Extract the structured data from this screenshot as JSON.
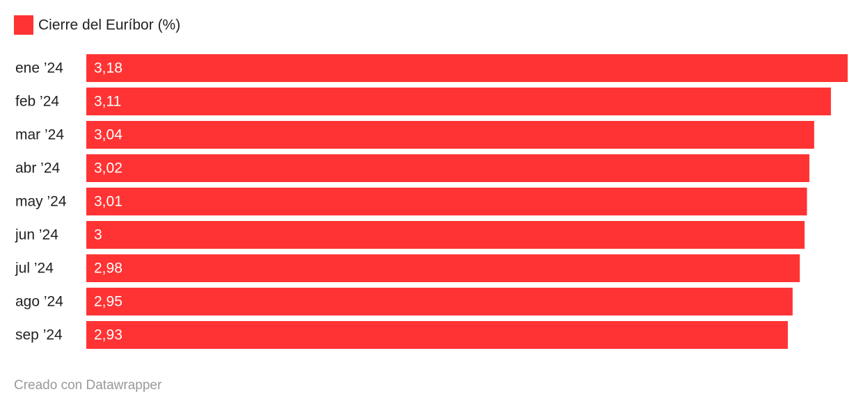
{
  "chart_data": {
    "type": "hbar",
    "categories": [
      "ene ’24",
      "feb ’24",
      "mar ’24",
      "abr ’24",
      "may ’24",
      "jun ’24",
      "jul ’24",
      "ago ’24",
      "sep ’24"
    ],
    "series": [
      {
        "name": "Cierre del Euríbor (%)",
        "color": "#ff3333",
        "values": [
          3.18,
          3.11,
          3.04,
          3.02,
          3.01,
          3,
          2.98,
          2.95,
          2.93
        ],
        "value_labels": [
          "3,18",
          "3,11",
          "3,04",
          "3,02",
          "3,01",
          "3",
          "2,98",
          "2,95",
          "2,93"
        ]
      }
    ],
    "legend": "top-left",
    "footer": "Creado con Datawrapper"
  }
}
